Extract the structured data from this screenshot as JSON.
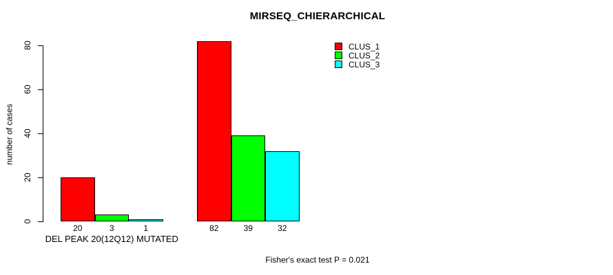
{
  "chart_data": {
    "type": "bar",
    "title": "MIRSEQ_CHIERARCHICAL",
    "ylabel": "number of cases",
    "xlabel": "DEL PEAK 20(12Q12) MUTATED",
    "footnote": "Fisher's exact test P = 0.021",
    "ylim": [
      0,
      80
    ],
    "yticks": [
      "0",
      "20",
      "40",
      "60",
      "80"
    ],
    "grid": false,
    "legend_position": "top-right",
    "series": [
      {
        "name": "CLUS_1",
        "color": "#ff0000"
      },
      {
        "name": "CLUS_2",
        "color": "#00ff00"
      },
      {
        "name": "CLUS_3",
        "color": "#00ffff"
      }
    ],
    "groups": [
      {
        "label": "DEL PEAK 20(12Q12) MUTATED",
        "values": [
          20,
          3,
          1
        ]
      },
      {
        "label": "",
        "values": [
          82,
          39,
          32
        ]
      }
    ]
  }
}
